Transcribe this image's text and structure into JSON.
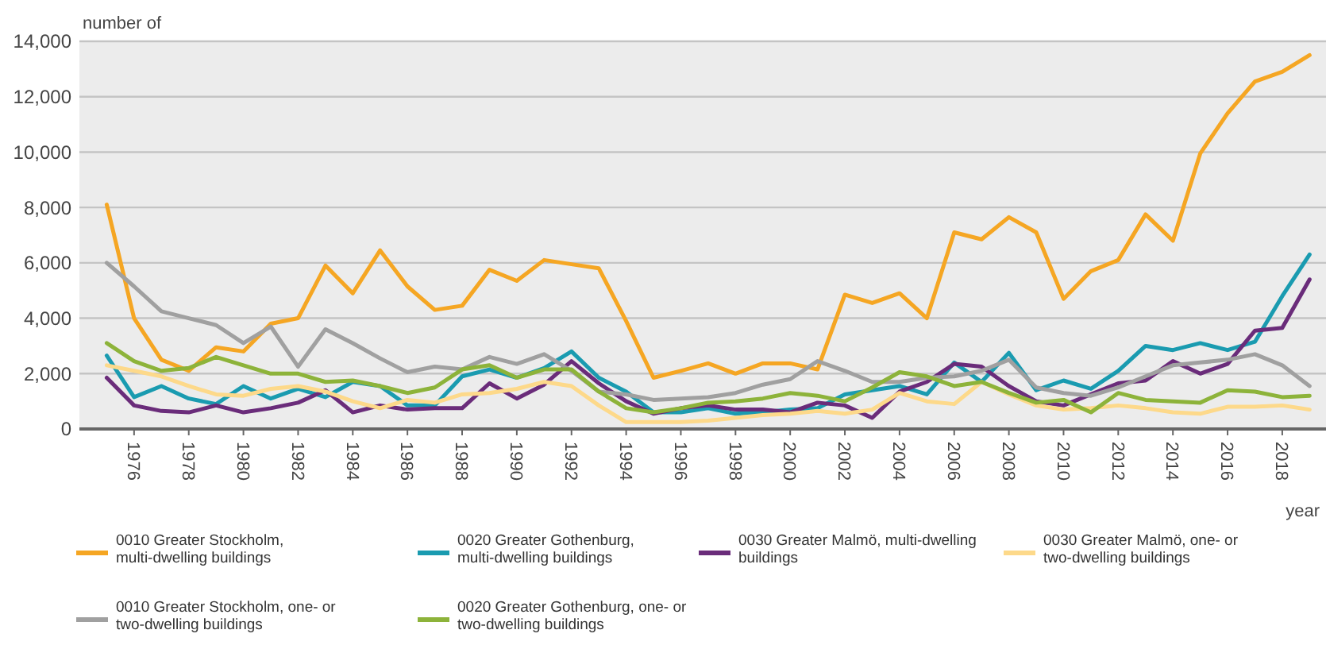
{
  "chart_data": {
    "type": "line",
    "ylabel": "number of",
    "xlabel": "year",
    "x": [
      1975,
      1976,
      1977,
      1978,
      1979,
      1980,
      1981,
      1982,
      1983,
      1984,
      1985,
      1986,
      1987,
      1988,
      1989,
      1990,
      1991,
      1992,
      1993,
      1994,
      1995,
      1996,
      1997,
      1998,
      1999,
      2000,
      2001,
      2002,
      2003,
      2004,
      2005,
      2006,
      2007,
      2008,
      2009,
      2010,
      2011,
      2012,
      2013,
      2014,
      2015,
      2016,
      2017,
      2018,
      2019
    ],
    "xlim": [
      1974,
      2019.6
    ],
    "xticks": [
      1976,
      1978,
      1980,
      1982,
      1984,
      1986,
      1988,
      1990,
      1992,
      1994,
      1996,
      1998,
      2000,
      2002,
      2004,
      2006,
      2008,
      2010,
      2012,
      2014,
      2016,
      2018
    ],
    "ylim": [
      0,
      14000
    ],
    "yticks": [
      0,
      {
        "value": 2000,
        "label": "2,000"
      },
      {
        "value": 4000,
        "label": "4,000"
      },
      {
        "value": 6000,
        "label": "6,000"
      },
      {
        "value": 8000,
        "label": "8,000"
      },
      {
        "value": 10000,
        "label": "10,000"
      },
      {
        "value": 12000,
        "label": "12,000"
      },
      {
        "value": 14000,
        "label": "14,000"
      }
    ],
    "grid": "y",
    "legend": "bottom",
    "marker": "none",
    "line_style": "solid",
    "series": [
      {
        "name": "0010 Greater Stockholm, multi-dwelling buildings",
        "color": "#f5a623",
        "values": [
          8100,
          4000,
          2500,
          2100,
          2950,
          2800,
          3800,
          4000,
          5900,
          4900,
          6450,
          5150,
          4300,
          4450,
          5750,
          5350,
          6100,
          5950,
          5800,
          3900,
          1850,
          2100,
          2370,
          2000,
          2370,
          2370,
          2150,
          4850,
          4550,
          4900,
          4000,
          7100,
          6850,
          7650,
          7100,
          4700,
          5700,
          6100,
          7750,
          6800,
          9950,
          11400,
          12550,
          12900,
          13500
        ]
      },
      {
        "name": "0020 Greater Gothenburg, multi-dwelling buildings",
        "color": "#1a9bb0",
        "values": [
          2650,
          1150,
          1550,
          1100,
          900,
          1550,
          1100,
          1450,
          1150,
          1700,
          1550,
          850,
          850,
          1900,
          2150,
          1850,
          2200,
          2800,
          1850,
          1350,
          600,
          600,
          750,
          550,
          600,
          700,
          750,
          1250,
          1400,
          1550,
          1250,
          2400,
          1700,
          2750,
          1400,
          1750,
          1450,
          2100,
          3000,
          2850,
          3100,
          2850,
          3150,
          4800,
          6300
        ]
      },
      {
        "name": "0030 Greater Malmö, multi-dwelling buildings",
        "color": "#6a2c7a",
        "values": [
          1850,
          850,
          650,
          600,
          850,
          600,
          750,
          950,
          1400,
          600,
          850,
          700,
          750,
          750,
          1650,
          1100,
          1600,
          2450,
          1650,
          1000,
          550,
          750,
          850,
          700,
          700,
          600,
          950,
          850,
          400,
          1350,
          1700,
          2350,
          2250,
          1550,
          1000,
          850,
          1250,
          1650,
          1750,
          2450,
          2000,
          2350,
          3550,
          3650,
          5400
        ]
      },
      {
        "name": "0030 Greater Malmö, one- or two-dwelling buildings",
        "color": "#fdd98a",
        "values": [
          2300,
          2100,
          1900,
          1550,
          1250,
          1200,
          1450,
          1550,
          1350,
          1000,
          750,
          1050,
          950,
          1250,
          1300,
          1450,
          1700,
          1550,
          850,
          250,
          250,
          250,
          300,
          400,
          500,
          550,
          650,
          550,
          700,
          1300,
          1000,
          900,
          1700,
          1250,
          850,
          700,
          750,
          850,
          750,
          600,
          550,
          800,
          800,
          850,
          700
        ]
      },
      {
        "name": "0010 Greater Stockholm, one- or two-dwelling buildings",
        "color": "#a0a0a0",
        "values": [
          6000,
          5150,
          4250,
          4000,
          3750,
          3100,
          3700,
          2250,
          3600,
          3100,
          2550,
          2050,
          2250,
          2150,
          2600,
          2350,
          2700,
          2100,
          1350,
          1250,
          1050,
          1100,
          1150,
          1300,
          1600,
          1800,
          2450,
          2100,
          1700,
          1700,
          1850,
          1900,
          2100,
          2500,
          1500,
          1300,
          1200,
          1500,
          1900,
          2300,
          2400,
          2500,
          2700,
          2300,
          1550
        ]
      },
      {
        "name": "0020 Greater Gothenburg, one- or two-dwelling buildings",
        "color": "#8db33a",
        "values": [
          3100,
          2450,
          2100,
          2200,
          2600,
          2300,
          2000,
          2000,
          1700,
          1750,
          1550,
          1300,
          1500,
          2150,
          2300,
          1850,
          2150,
          2150,
          1350,
          750,
          600,
          750,
          950,
          1000,
          1100,
          1300,
          1200,
          1000,
          1500,
          2050,
          1900,
          1550,
          1700,
          1300,
          950,
          1050,
          600,
          1300,
          1050,
          1000,
          950,
          1400,
          1350,
          1150,
          1200
        ]
      }
    ]
  }
}
